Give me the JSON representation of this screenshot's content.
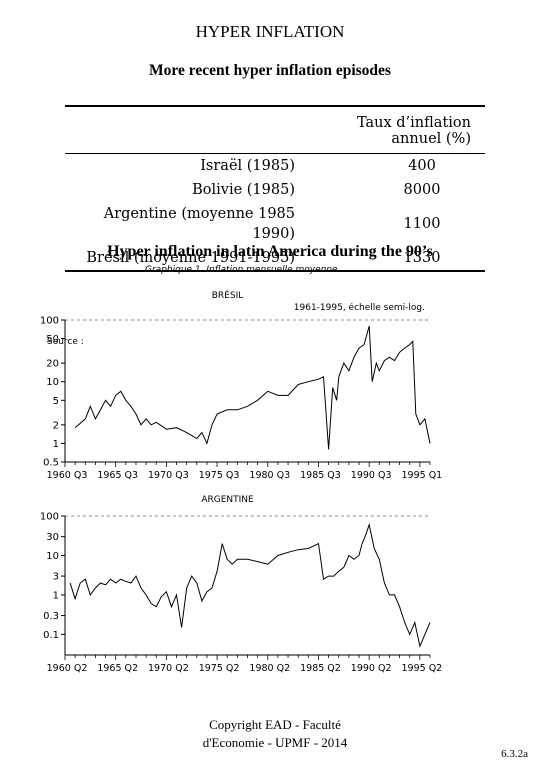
{
  "title": "HYPER INFLATION",
  "subtitle": "More recent hyper inflation episodes",
  "table": {
    "header": "Taux d’inflation annuel (%)",
    "rows": [
      {
        "country": "Israël (1985)",
        "value": "400"
      },
      {
        "country": "Bolivie (1985)",
        "value": "8000"
      },
      {
        "country": "Argentine (moyenne 1985 1990)",
        "value": "1100"
      },
      {
        "country": "Brésil (moyenne 1991-1995)",
        "value": "1330"
      }
    ]
  },
  "section_title": "Hyper inflation in latin America during the 90’s",
  "graph_caption": "Graphique 1. Inflation mensuelle moyenne",
  "source_note": "Source :",
  "footer": {
    "line1": "Copyright EAD - Faculté",
    "line2": "d'Economie - UPMF - 2014"
  },
  "page_number": "6.3.2a",
  "chart_data": [
    {
      "type": "line",
      "title": "BRÉSIL",
      "subtitle": "1961-1995, échelle semi-log.",
      "log_scale": true,
      "ylim": [
        0.5,
        100
      ],
      "y_ticks": [
        100,
        50,
        20,
        10,
        5,
        2,
        1,
        0.5
      ],
      "y_tick_labels": [
        "100",
        "50",
        "20",
        "10",
        "5",
        "2",
        "1",
        "0.5"
      ],
      "xlim": [
        1960,
        1996
      ],
      "x_tick_labels": [
        "1960 Q3",
        "1965 Q3",
        "1970 Q3",
        "1975 Q3",
        "1980 Q3",
        "1985 Q3",
        "1990 Q3",
        "1995 Q1"
      ],
      "series": [
        {
          "x": [
            1961,
            1962,
            1962.5,
            1963,
            1963.5,
            1964,
            1964.5,
            1965,
            1965.5,
            1966,
            1966.5,
            1967,
            1967.5,
            1968,
            1968.5,
            1969,
            1970,
            1971,
            1972,
            1973,
            1973.5,
            1974,
            1974.5,
            1975,
            1976,
            1977,
            1978,
            1979,
            1980,
            1981,
            1982,
            1983,
            1984,
            1985,
            1985.5,
            1986,
            1986.4,
            1986.8,
            1987,
            1987.5,
            1988,
            1988.5,
            1989,
            1989.5,
            1990,
            1990.3,
            1990.7,
            1991,
            1991.5,
            1992,
            1992.5,
            1993,
            1993.5,
            1994,
            1994.3,
            1994.6,
            1995,
            1995.5,
            1996
          ],
          "y": [
            1.8,
            2.5,
            4,
            2.5,
            3.5,
            5,
            4,
            6,
            7,
            5,
            4,
            3,
            2,
            2.5,
            2,
            2.2,
            1.7,
            1.8,
            1.5,
            1.2,
            1.5,
            1,
            2,
            3,
            3.5,
            3.5,
            4,
            5,
            7,
            6,
            6,
            9,
            10,
            11,
            12,
            0.8,
            8,
            5,
            12,
            20,
            15,
            25,
            35,
            40,
            80,
            10,
            20,
            15,
            22,
            25,
            22,
            30,
            35,
            40,
            45,
            3,
            2,
            2.5,
            1
          ]
        }
      ]
    },
    {
      "type": "line",
      "title": "ARGENTINE",
      "log_scale": true,
      "ylim": [
        0.03,
        100
      ],
      "y_ticks": [
        100,
        30,
        10,
        3,
        1,
        0.3,
        0.1
      ],
      "y_tick_labels": [
        "100",
        "30",
        "10",
        "3",
        "1",
        "0.3",
        "0.1"
      ],
      "xlim": [
        1960,
        1996
      ],
      "x_tick_labels": [
        "1960 Q2",
        "1965 Q2",
        "1970 Q2",
        "1975 Q2",
        "1980 Q2",
        "1985 Q2",
        "1990 Q2",
        "1995 Q2"
      ],
      "series": [
        {
          "x": [
            1960.5,
            1961,
            1961.5,
            1962,
            1962.5,
            1963,
            1963.5,
            1964,
            1964.5,
            1965,
            1965.5,
            1966,
            1966.5,
            1967,
            1967.5,
            1968,
            1968.5,
            1969,
            1969.5,
            1970,
            1970.5,
            1971,
            1971.5,
            1972,
            1972.5,
            1973,
            1973.5,
            1974,
            1974.5,
            1975,
            1975.5,
            1976,
            1976.5,
            1977,
            1978,
            1979,
            1980,
            1981,
            1982,
            1983,
            1984,
            1985,
            1985.5,
            1986,
            1986.5,
            1987,
            1987.5,
            1988,
            1988.5,
            1989,
            1989.3,
            1989.6,
            1990,
            1990.5,
            1991,
            1991.5,
            1992,
            1992.5,
            1993,
            1993.5,
            1994,
            1994.5,
            1995,
            1995.5,
            1996
          ],
          "y": [
            2,
            0.8,
            2,
            2.5,
            1,
            1.5,
            2,
            1.8,
            2.5,
            2,
            2.5,
            2.2,
            2,
            3,
            1.5,
            1,
            0.6,
            0.5,
            0.9,
            1.2,
            0.5,
            1,
            0.15,
            1.5,
            3,
            2,
            0.7,
            1.2,
            1.5,
            4,
            20,
            8,
            6,
            8,
            8,
            7,
            6,
            10,
            12,
            14,
            15,
            20,
            2.5,
            3,
            3,
            4,
            5,
            10,
            8,
            10,
            20,
            30,
            60,
            15,
            8,
            2,
            1,
            1,
            0.5,
            0.2,
            0.1,
            0.2,
            0.05,
            0.1,
            0.2
          ]
        }
      ]
    }
  ]
}
